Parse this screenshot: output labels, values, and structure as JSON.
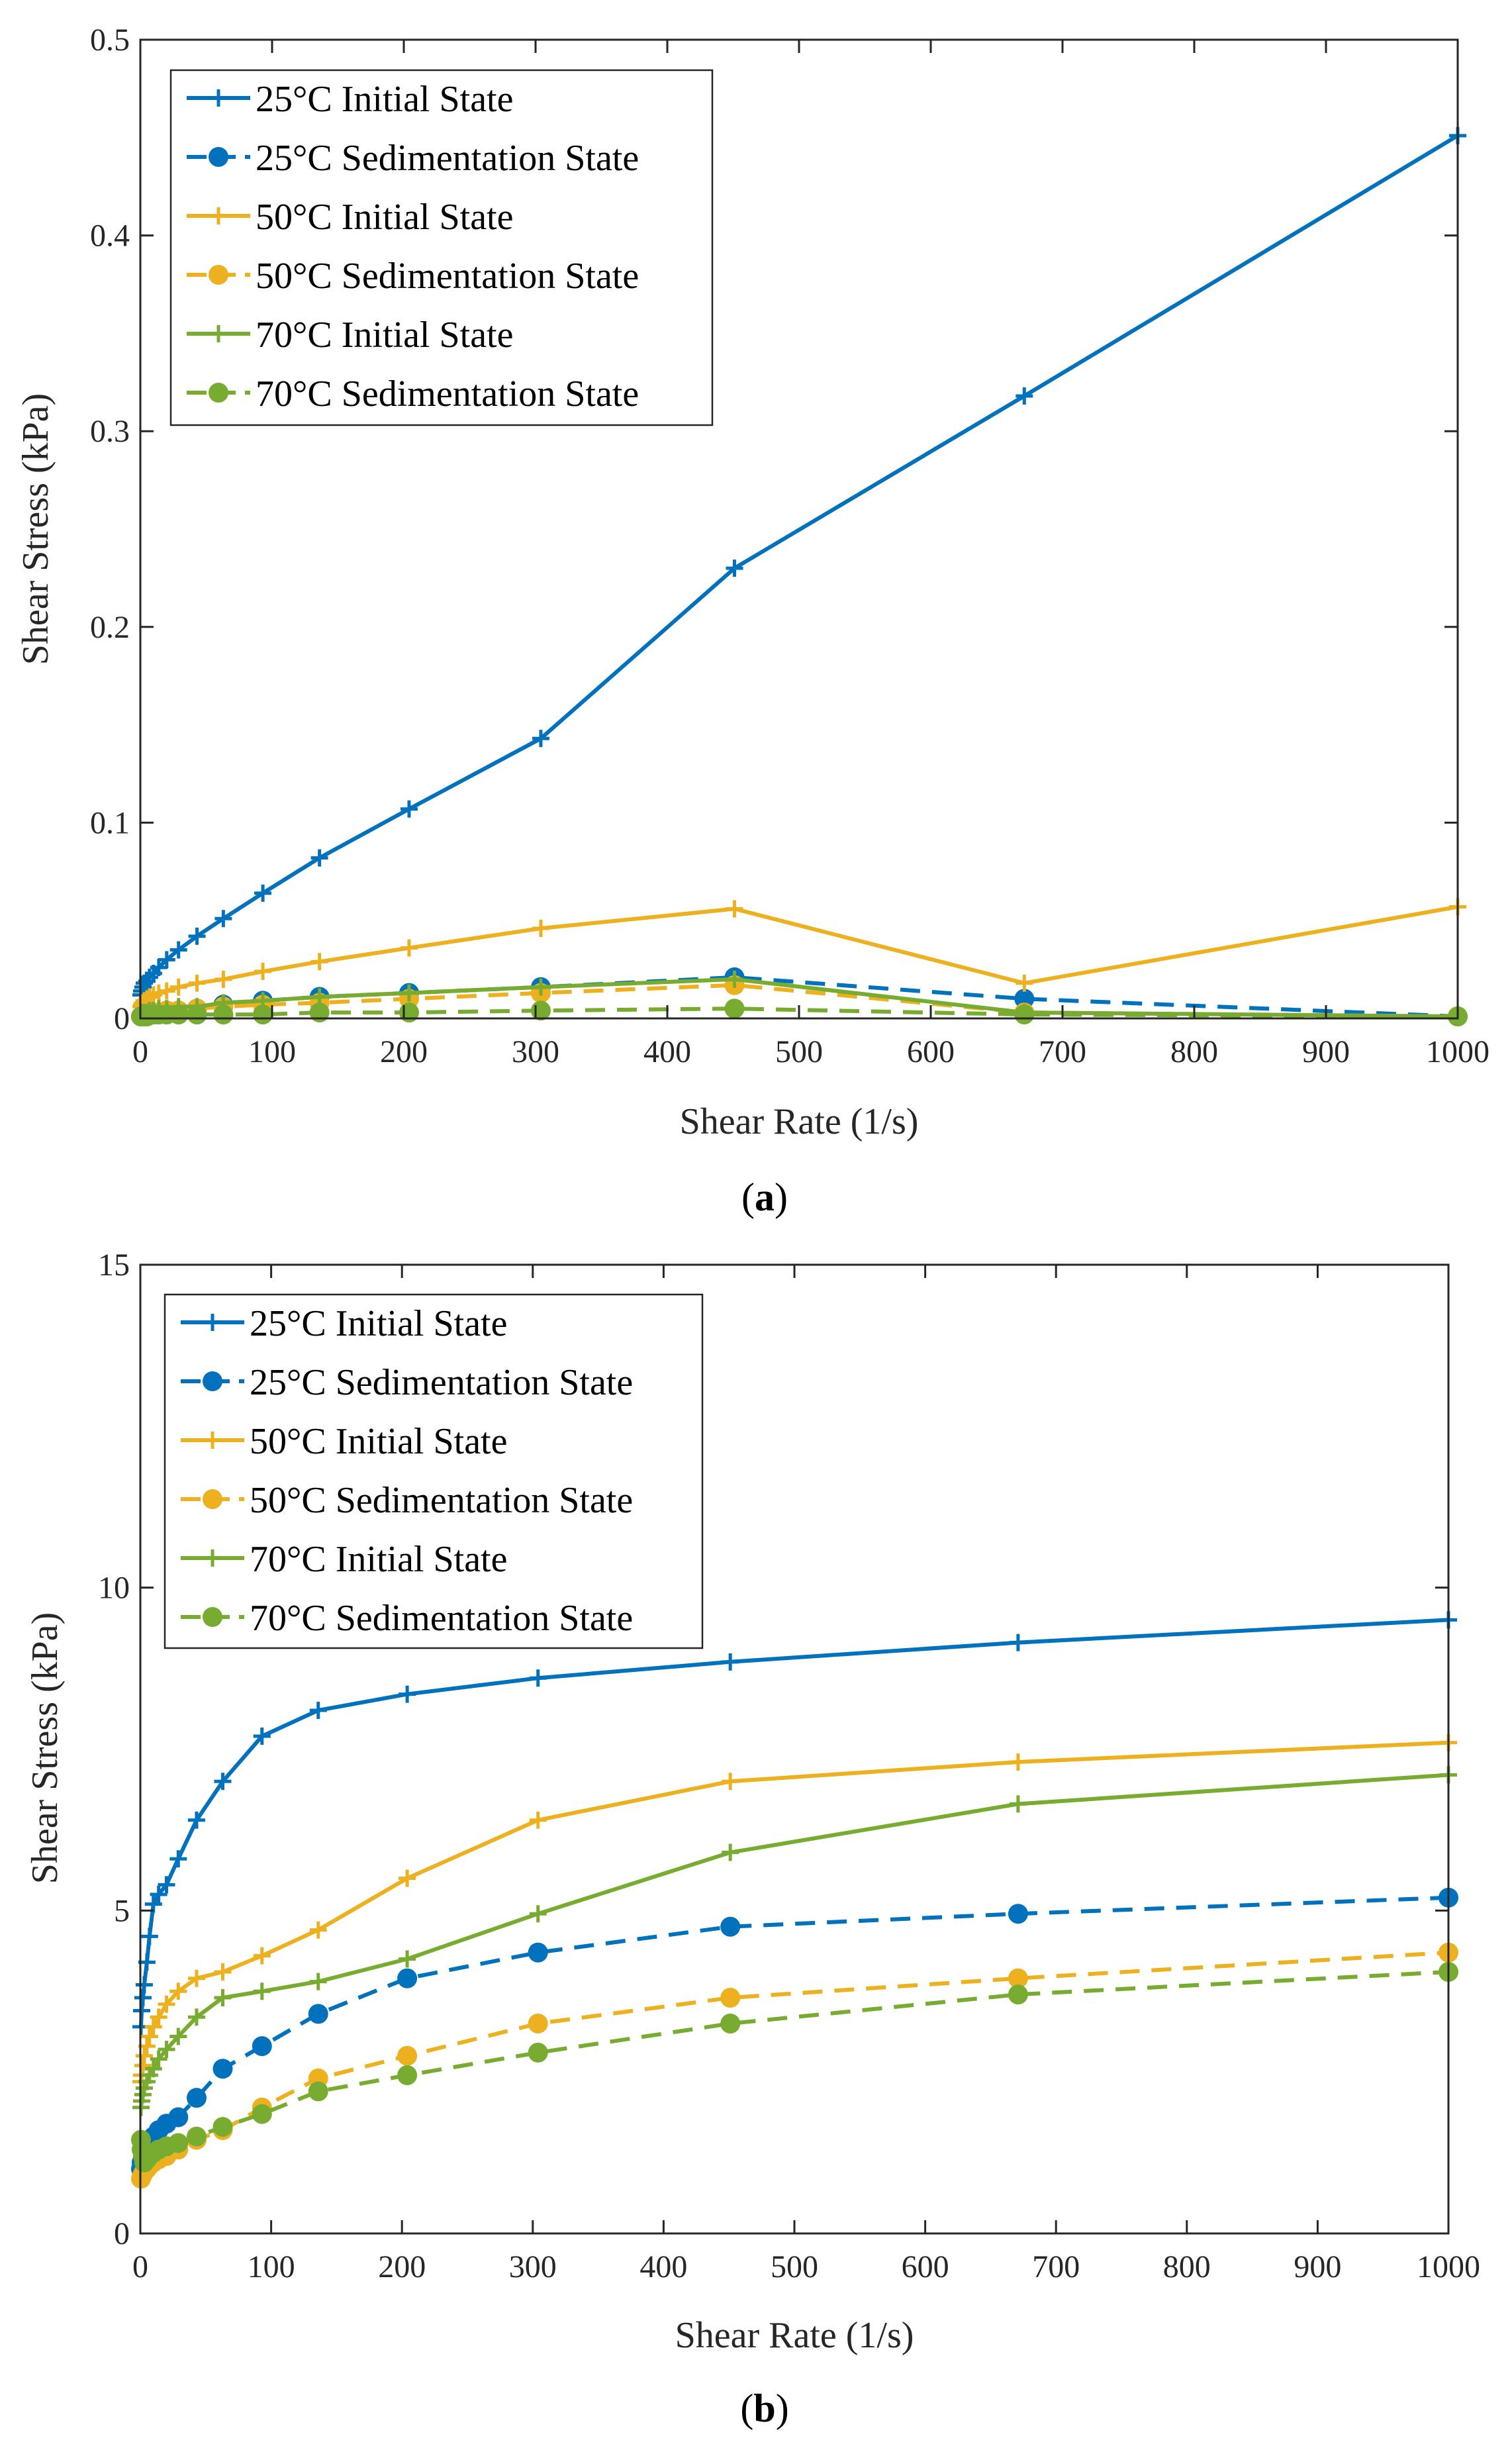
{
  "colors": {
    "25C": "#0072BD",
    "50C": "#EDB120",
    "70C": "#77AC30",
    "axis": "#262626"
  },
  "chart_data": [
    {
      "type": "line",
      "panel_caption": "(a)",
      "caption_letter": "a",
      "xlabel": "Shear Rate (1/s)",
      "ylabel": "Shear Stress (kPa)",
      "xlim": [
        0,
        1000
      ],
      "ylim": [
        0,
        0.5
      ],
      "xticks": [
        0,
        100,
        200,
        300,
        400,
        500,
        600,
        700,
        800,
        900,
        1000
      ],
      "xtick_labels": [
        "0",
        "100",
        "200",
        "300",
        "400",
        "500",
        "600",
        "700",
        "800",
        "900",
        "1000"
      ],
      "yticks": [
        0,
        0.1,
        0.2,
        0.3,
        0.4,
        0.5
      ],
      "ytick_labels": [
        "0",
        "0.1",
        "0.2",
        "0.3",
        "0.4",
        "0.5"
      ],
      "legend_position": "top-left",
      "series": [
        {
          "name": "25°C Initial State",
          "color_key": "25C",
          "line": "solid",
          "marker": "plus",
          "x": [
            0.5,
            1,
            2,
            3,
            5,
            7,
            10,
            14,
            20,
            29,
            43,
            63,
            93,
            136,
            204,
            304,
            451,
            671,
            1000
          ],
          "y": [
            0.012,
            0.014,
            0.016,
            0.018,
            0.019,
            0.021,
            0.023,
            0.026,
            0.03,
            0.035,
            0.042,
            0.051,
            0.064,
            0.082,
            0.107,
            0.143,
            0.23,
            0.318,
            0.451
          ]
        },
        {
          "name": "25°C Sedimentation State",
          "color_key": "25C",
          "line": "dashed",
          "marker": "circle",
          "x": [
            0.5,
            1,
            2,
            3,
            5,
            7,
            10,
            14,
            20,
            29,
            43,
            63,
            93,
            136,
            204,
            304,
            451,
            671,
            1000
          ],
          "y": [
            0.001,
            0.001,
            0.002,
            0.002,
            0.002,
            0.002,
            0.003,
            0.003,
            0.004,
            0.004,
            0.005,
            0.007,
            0.009,
            0.011,
            0.013,
            0.016,
            0.021,
            0.01,
            0.001
          ]
        },
        {
          "name": "50°C Initial State",
          "color_key": "50C",
          "line": "solid",
          "marker": "plus",
          "x": [
            0.5,
            1,
            2,
            3,
            5,
            7,
            10,
            14,
            20,
            29,
            43,
            63,
            93,
            136,
            204,
            304,
            451,
            671,
            1000
          ],
          "y": [
            0.006,
            0.007,
            0.008,
            0.009,
            0.01,
            0.011,
            0.012,
            0.013,
            0.014,
            0.016,
            0.018,
            0.02,
            0.024,
            0.029,
            0.036,
            0.046,
            0.056,
            0.018,
            0.057
          ]
        },
        {
          "name": "50°C Sedimentation State",
          "color_key": "50C",
          "line": "dashed",
          "marker": "circle",
          "x": [
            0.5,
            1,
            2,
            3,
            5,
            7,
            10,
            14,
            20,
            29,
            43,
            63,
            93,
            136,
            204,
            304,
            451,
            671,
            1000
          ],
          "y": [
            0.001,
            0.001,
            0.001,
            0.002,
            0.002,
            0.002,
            0.003,
            0.003,
            0.004,
            0.004,
            0.005,
            0.006,
            0.007,
            0.008,
            0.01,
            0.013,
            0.017,
            0.003,
            0.001
          ]
        },
        {
          "name": "70°C Initial State",
          "color_key": "70C",
          "line": "solid",
          "marker": "plus",
          "x": [
            0.5,
            1,
            2,
            3,
            5,
            7,
            10,
            14,
            20,
            29,
            43,
            63,
            93,
            136,
            204,
            304,
            451,
            671,
            1000
          ],
          "y": [
            0.002,
            0.002,
            0.003,
            0.003,
            0.003,
            0.004,
            0.004,
            0.005,
            0.005,
            0.006,
            0.006,
            0.008,
            0.009,
            0.011,
            0.013,
            0.016,
            0.02,
            0.003,
            0.001
          ]
        },
        {
          "name": "70°C Sedimentation State",
          "color_key": "70C",
          "line": "dashed",
          "marker": "circle",
          "x": [
            0.5,
            1,
            2,
            3,
            5,
            7,
            10,
            14,
            20,
            29,
            43,
            63,
            93,
            136,
            204,
            304,
            451,
            671,
            1000
          ],
          "y": [
            0.001,
            0.001,
            0.001,
            0.001,
            0.001,
            0.002,
            0.002,
            0.002,
            0.002,
            0.002,
            0.002,
            0.002,
            0.002,
            0.003,
            0.003,
            0.004,
            0.005,
            0.002,
            0.001
          ]
        }
      ]
    },
    {
      "type": "line",
      "panel_caption": "(b)",
      "caption_letter": "b",
      "xlabel": "Shear Rate (1/s)",
      "ylabel": "Shear Stress (kPa)",
      "xlim": [
        0,
        1000
      ],
      "ylim": [
        0,
        15
      ],
      "xticks": [
        0,
        100,
        200,
        300,
        400,
        500,
        600,
        700,
        800,
        900,
        1000
      ],
      "xtick_labels": [
        "0",
        "100",
        "200",
        "300",
        "400",
        "500",
        "600",
        "700",
        "800",
        "900",
        "1000"
      ],
      "yticks": [
        0,
        5,
        10,
        15
      ],
      "ytick_labels": [
        "0",
        "5",
        "10",
        "15"
      ],
      "legend_position": "top-left",
      "series": [
        {
          "name": "25°C Initial State",
          "color_key": "25C",
          "line": "solid",
          "marker": "plus",
          "x": [
            0.5,
            1,
            2,
            3,
            5,
            7,
            10,
            14,
            20,
            29,
            43,
            63,
            93,
            136,
            204,
            304,
            451,
            671,
            1000
          ],
          "y": [
            3.2,
            3.45,
            3.65,
            3.85,
            4.2,
            4.6,
            5.1,
            5.25,
            5.4,
            5.8,
            6.4,
            7.0,
            7.7,
            8.1,
            8.35,
            8.6,
            8.85,
            9.15,
            9.5
          ]
        },
        {
          "name": "25°C Sedimentation State",
          "color_key": "25C",
          "line": "dashed",
          "marker": "circle",
          "x": [
            0.5,
            1,
            2,
            3,
            5,
            7,
            10,
            14,
            20,
            29,
            43,
            63,
            93,
            136,
            204,
            304,
            451,
            671,
            1000
          ],
          "y": [
            1.0,
            1.1,
            1.15,
            1.2,
            1.3,
            1.4,
            1.5,
            1.6,
            1.7,
            1.8,
            2.1,
            2.55,
            2.9,
            3.4,
            3.95,
            4.35,
            4.75,
            4.95,
            5.2
          ]
        },
        {
          "name": "50°C Initial State",
          "color_key": "50C",
          "line": "solid",
          "marker": "plus",
          "x": [
            0.5,
            1,
            2,
            3,
            5,
            7,
            10,
            14,
            20,
            29,
            43,
            63,
            93,
            136,
            204,
            304,
            451,
            671,
            1000
          ],
          "y": [
            2.35,
            2.45,
            2.6,
            2.75,
            2.9,
            3.05,
            3.2,
            3.35,
            3.55,
            3.75,
            3.95,
            4.05,
            4.3,
            4.7,
            5.5,
            6.4,
            7.0,
            7.3,
            7.6
          ]
        },
        {
          "name": "50°C Sedimentation State",
          "color_key": "50C",
          "line": "dashed",
          "marker": "circle",
          "x": [
            0.5,
            1,
            2,
            3,
            5,
            7,
            10,
            14,
            20,
            29,
            43,
            63,
            93,
            136,
            204,
            304,
            451,
            671,
            1000
          ],
          "y": [
            0.85,
            0.88,
            0.92,
            0.96,
            1.0,
            1.05,
            1.1,
            1.15,
            1.2,
            1.3,
            1.45,
            1.6,
            1.95,
            2.4,
            2.75,
            3.25,
            3.65,
            3.95,
            4.35
          ]
        },
        {
          "name": "70°C Initial State",
          "color_key": "70C",
          "line": "solid",
          "marker": "plus",
          "x": [
            0.5,
            1,
            2,
            3,
            5,
            7,
            10,
            14,
            20,
            29,
            43,
            63,
            93,
            136,
            204,
            304,
            451,
            671,
            1000
          ],
          "y": [
            1.95,
            2.05,
            2.15,
            2.25,
            2.35,
            2.45,
            2.55,
            2.7,
            2.85,
            3.05,
            3.35,
            3.65,
            3.75,
            3.9,
            4.25,
            4.95,
            5.9,
            6.65,
            7.1
          ]
        },
        {
          "name": "70°C Sedimentation State",
          "color_key": "70C",
          "line": "dashed",
          "marker": "circle",
          "x": [
            0.5,
            1,
            2,
            3,
            5,
            7,
            10,
            14,
            20,
            29,
            43,
            63,
            93,
            136,
            204,
            304,
            451,
            671,
            1000
          ],
          "y": [
            1.45,
            1.3,
            1.2,
            1.1,
            1.15,
            1.2,
            1.25,
            1.3,
            1.35,
            1.4,
            1.5,
            1.65,
            1.85,
            2.2,
            2.45,
            2.8,
            3.25,
            3.7,
            4.05
          ]
        }
      ]
    }
  ]
}
